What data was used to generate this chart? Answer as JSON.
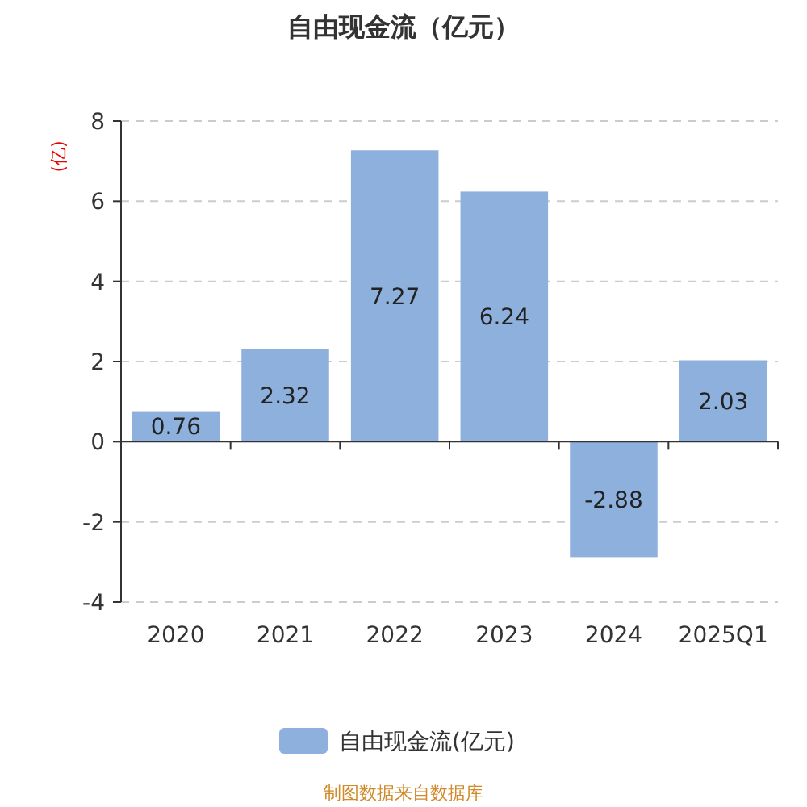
{
  "chart_data": {
    "type": "bar",
    "title": "自由现金流（亿元）",
    "ylabel": "(亿)",
    "categories": [
      "2020",
      "2021",
      "2022",
      "2023",
      "2024",
      "2025Q1"
    ],
    "series": [
      {
        "name": "自由现金流(亿元)",
        "color": "#8eb0dd",
        "values": [
          0.76,
          2.32,
          7.27,
          6.24,
          -2.88,
          2.03
        ]
      }
    ],
    "ylim": [
      -4,
      8
    ],
    "yticks": [
      -4,
      -2,
      0,
      2,
      4,
      6,
      8
    ],
    "grid": "y",
    "legend": "bottom",
    "data_labels": true,
    "annotations": [
      "制图数据来自数据库"
    ]
  }
}
